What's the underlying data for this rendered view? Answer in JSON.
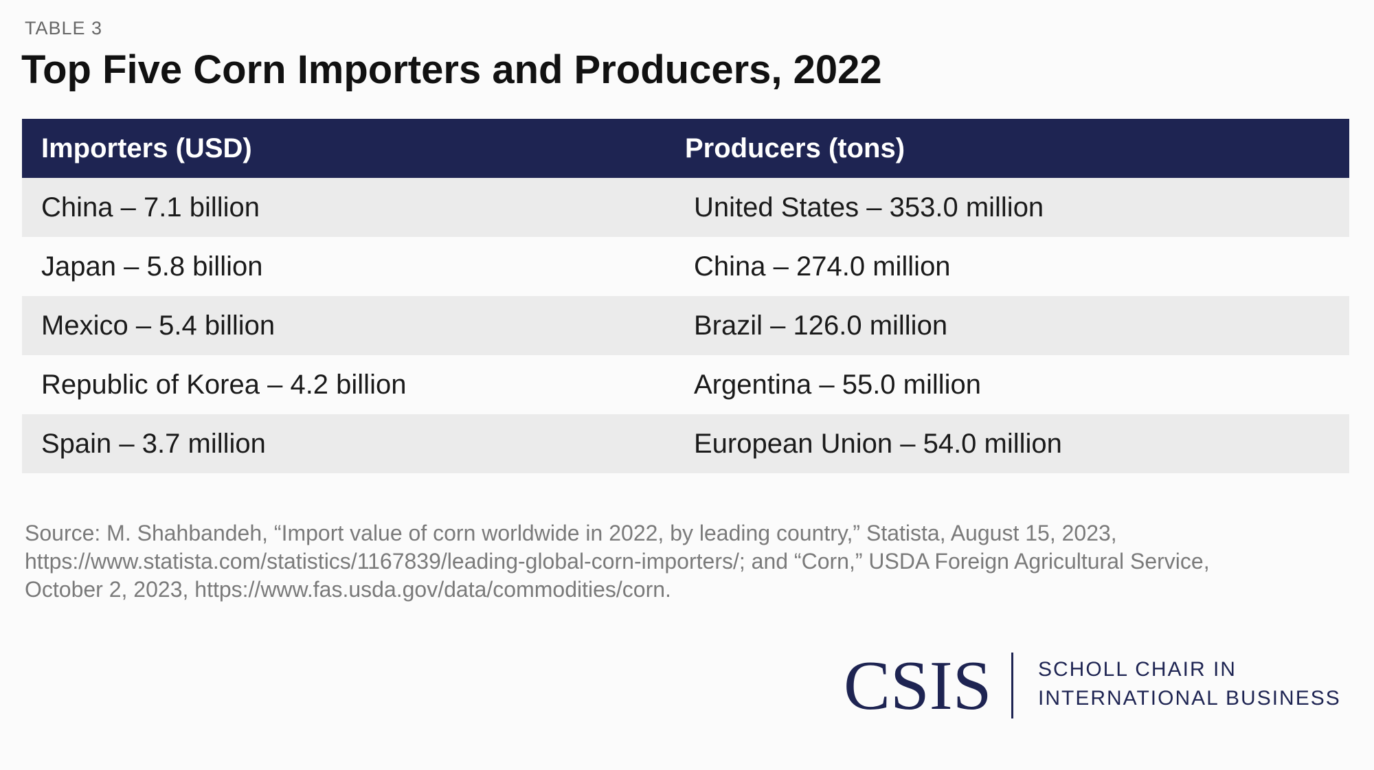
{
  "header": {
    "label": "TABLE 3",
    "title": "Top Five Corn Importers and Producers, 2022"
  },
  "table": {
    "columns": [
      "Importers (USD)",
      "Producers (tons)"
    ],
    "rows": [
      [
        "China – 7.1 billion",
        "United States – 353.0 million"
      ],
      [
        "Japan – 5.8 billion",
        "China – 274.0 million"
      ],
      [
        "Mexico – 5.4 billion",
        "Brazil – 126.0 million"
      ],
      [
        "Republic of Korea – 4.2 billion",
        "Argentina – 55.0 million"
      ],
      [
        "Spain – 3.7 million",
        "European Union – 54.0 million"
      ]
    ]
  },
  "source": "Source: M. Shahbandeh, “Import value of corn worldwide in 2022, by leading country,” Statista, August 15, 2023, https://www.statista.com/statistics/1167839/leading-global-corn-importers/; and “Corn,” USDA Foreign Agricultural Service, October 2, 2023, https://www.fas.usda.gov/data/commodities/corn.",
  "footer": {
    "logo": "CSIS",
    "org_lines": [
      "SCHOLL CHAIR IN",
      "INTERNATIONAL BUSINESS"
    ]
  }
}
